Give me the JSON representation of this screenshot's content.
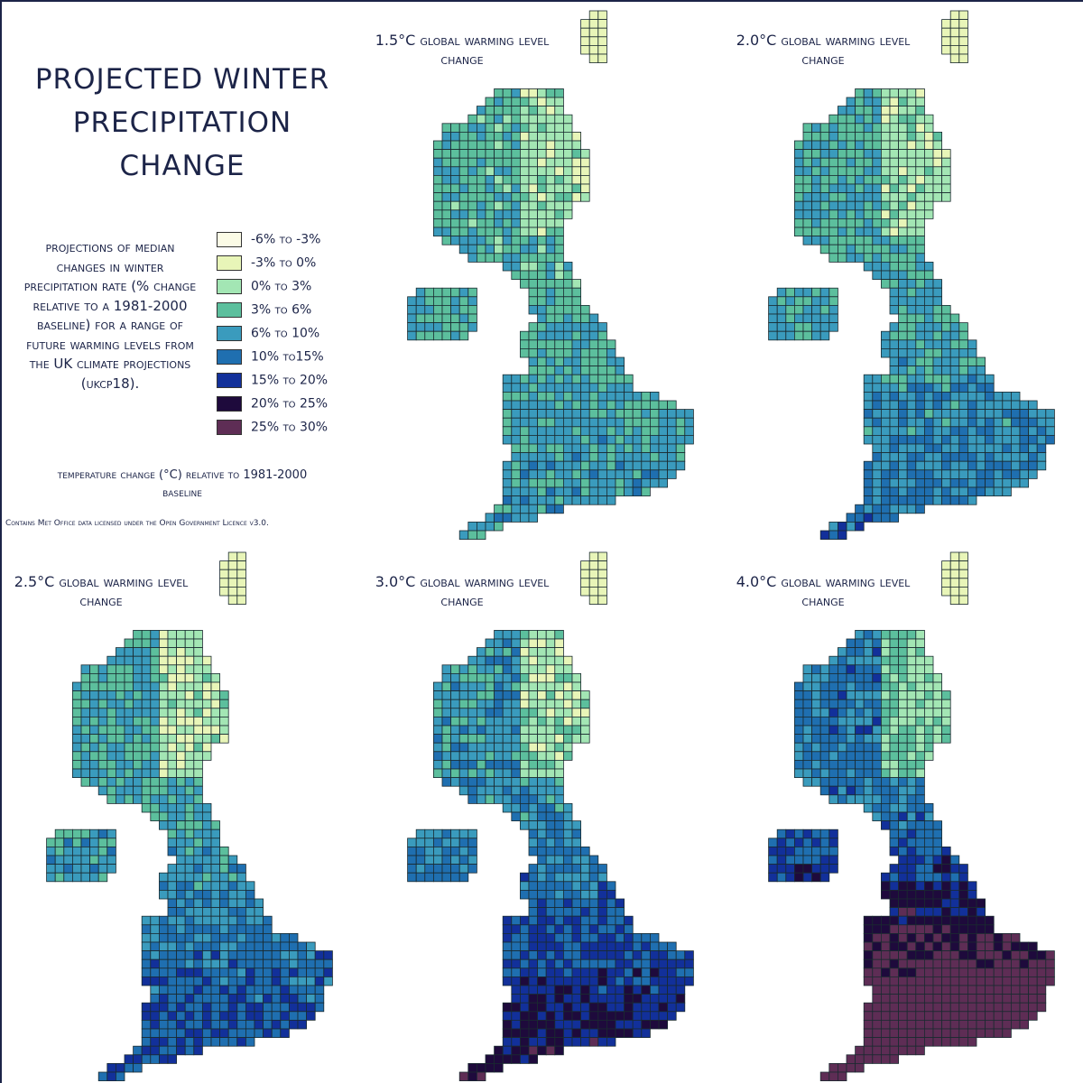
{
  "title": "PROJECTED WINTER PRECIPITATION CHANGE",
  "description": "projections of median changes in winter precipitation rate (% change relative to a 1981-2000 baseline) for a range of future warming levels from the UK climate projections (ukcp18).",
  "legend": [
    {
      "label": "-6% to -3%",
      "color": "#fbfbe6"
    },
    {
      "label": "-3% to 0%",
      "color": "#e8f5b8"
    },
    {
      "label": "0% to 3%",
      "color": "#a3e6b4"
    },
    {
      "label": "3% to 6%",
      "color": "#5cbf9d"
    },
    {
      "label": "6% to 10%",
      "color": "#3a9bbd"
    },
    {
      "label": "10% to15%",
      "color": "#1f6fb0"
    },
    {
      "label": "15% to 20%",
      "color": "#12309a"
    },
    {
      "label": "20% to 25%",
      "color": "#1e0a3c"
    },
    {
      "label": "25% to 30%",
      "color": "#5e2d55"
    }
  ],
  "subtitle": "temperature change (°C) relative to 1981-2000 baseline",
  "credit": "Contains Met Office data licensed under the Open Government Licence v3.0.",
  "maps": [
    {
      "label": "1.5°C global warming level change"
    },
    {
      "label": "2.0°C global warming level change"
    },
    {
      "label": "2.5°C global warming level change"
    },
    {
      "label": "3.0°C global warming level change"
    },
    {
      "label": "4.0°C global warming level change"
    }
  ]
}
